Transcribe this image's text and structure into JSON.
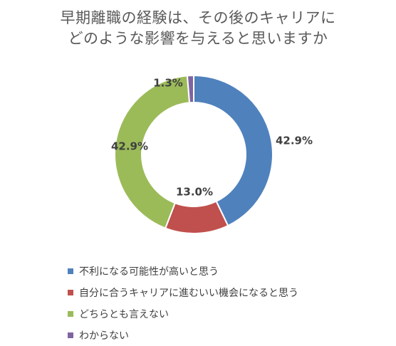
{
  "chart_data": {
    "type": "pie",
    "variant": "donut",
    "title": [
      "早期離職の経験は、その後のキャリアに",
      "どのような影響を与えると思いますか"
    ],
    "categories": [
      "不利になる可能性が高いと思う",
      "自分に合うキャリアに進むいい機会になると思う",
      "どちらとも言えない",
      "わからない"
    ],
    "values": [
      42.9,
      13.0,
      42.9,
      1.3
    ],
    "data_labels": [
      "42.9%",
      "13.0%",
      "42.9%",
      "1.3%"
    ],
    "colors": [
      "#4F81BD",
      "#C0504D",
      "#9BBB59",
      "#8064A2"
    ],
    "legend_position": "bottom-left"
  }
}
